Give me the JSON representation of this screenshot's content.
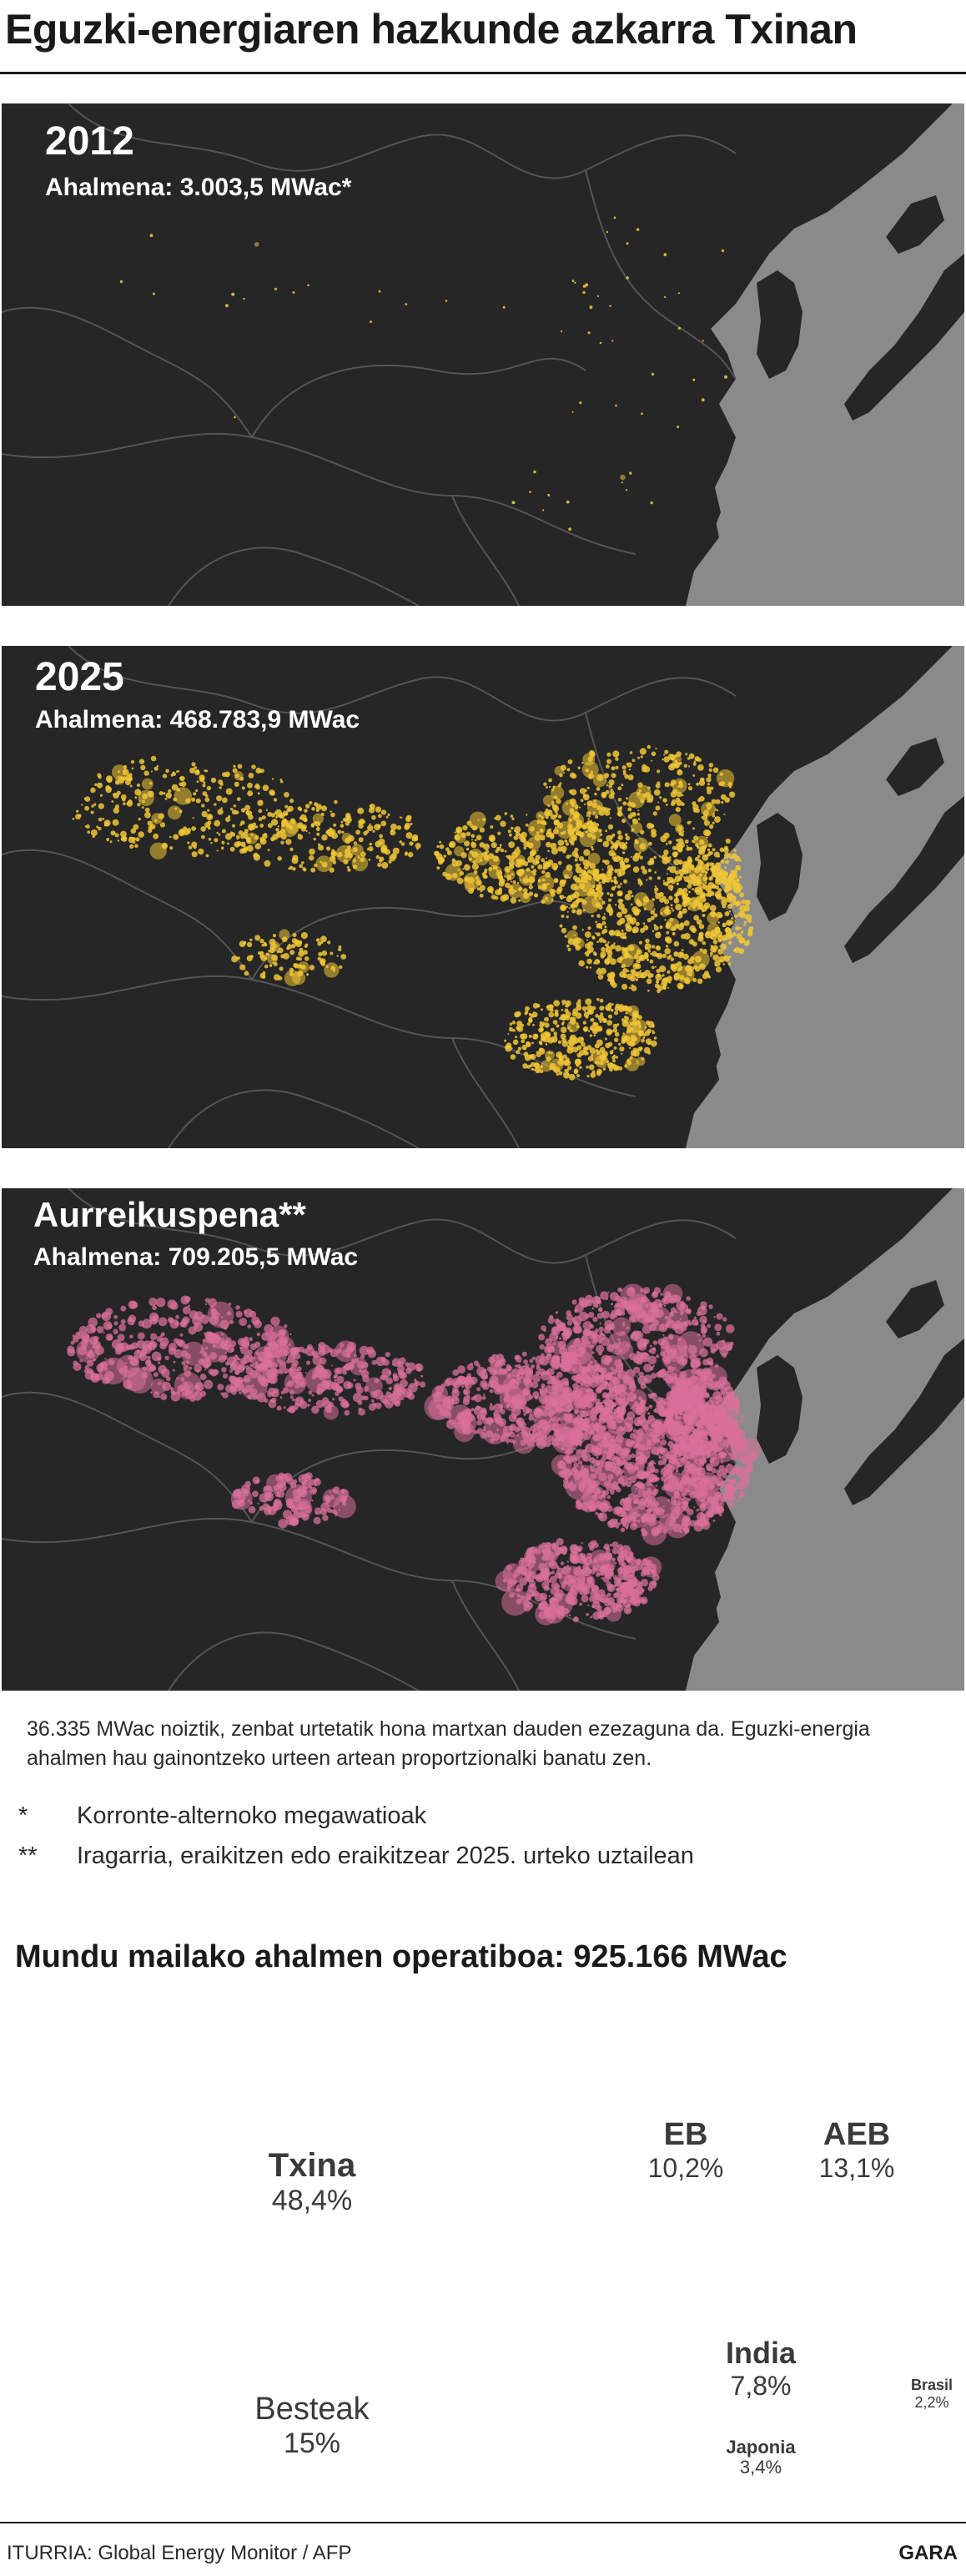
{
  "title": "Eguzki-energiaren hazkunde azkarra Txinan",
  "maps": [
    {
      "label": "2012",
      "capacity": "Ahalmena: 3.003,5 MWac*",
      "dot_color": "#e8c43a"
    },
    {
      "label": "2025",
      "capacity": "Ahalmena: 468.783,9 MWac",
      "dot_color": "#f0c535"
    },
    {
      "label": "Aurreikuspena**",
      "capacity": "Ahalmena: 709.205,5 MWac",
      "dot_color": "#d9709a"
    }
  ],
  "note": "36.335 MWac noiztik, zenbat urtetatik hona martxan dauden ezezaguna da. Eguzki-energia ahalmen hau gainontzeko urteen artean proportzionalki banatu zen.",
  "footnotes": [
    {
      "mark": "*",
      "text": "Korronte-alternoko megawatioak"
    },
    {
      "mark": "**",
      "text": "Iragarria, eraikitzen edo eraikitzear 2025. urteko uztailean"
    }
  ],
  "treemap": {
    "title": "Mundu mailako ahalmen operatiboa: 925.166 MWac",
    "cells": [
      {
        "name": "Txina",
        "pct": "48,4%",
        "value": 48.4,
        "color": "#f0cf60"
      },
      {
        "name": "EB",
        "pct": "10,2%",
        "value": 10.2,
        "color": "#c3cbce"
      },
      {
        "name": "AEB",
        "pct": "13,1%",
        "value": 13.1,
        "color": "#a6afb2"
      },
      {
        "name": "India",
        "pct": "7,8%",
        "value": 7.8,
        "color": "#8d9598"
      },
      {
        "name": "Japonia",
        "pct": "3,4%",
        "value": 3.4,
        "color": "#b9c2c5"
      },
      {
        "name": "Brasil",
        "pct": "2,2%",
        "value": 2.2,
        "color": "#dfe1e1"
      },
      {
        "name": "Besteak",
        "pct": "15%",
        "value": 15,
        "color": "#d9dcdc"
      }
    ]
  },
  "source": "ITURRIA: Global Energy Monitor / AFP",
  "brand": "GARA"
}
